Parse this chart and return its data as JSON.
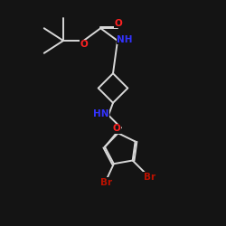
{
  "bg_color": "#141414",
  "bond_color": "#d8d8d8",
  "atom_colors": {
    "O": "#ff2222",
    "N": "#3333ff",
    "Br": "#bb1100"
  },
  "bond_lw": 1.4,
  "fontsize": 7.5
}
